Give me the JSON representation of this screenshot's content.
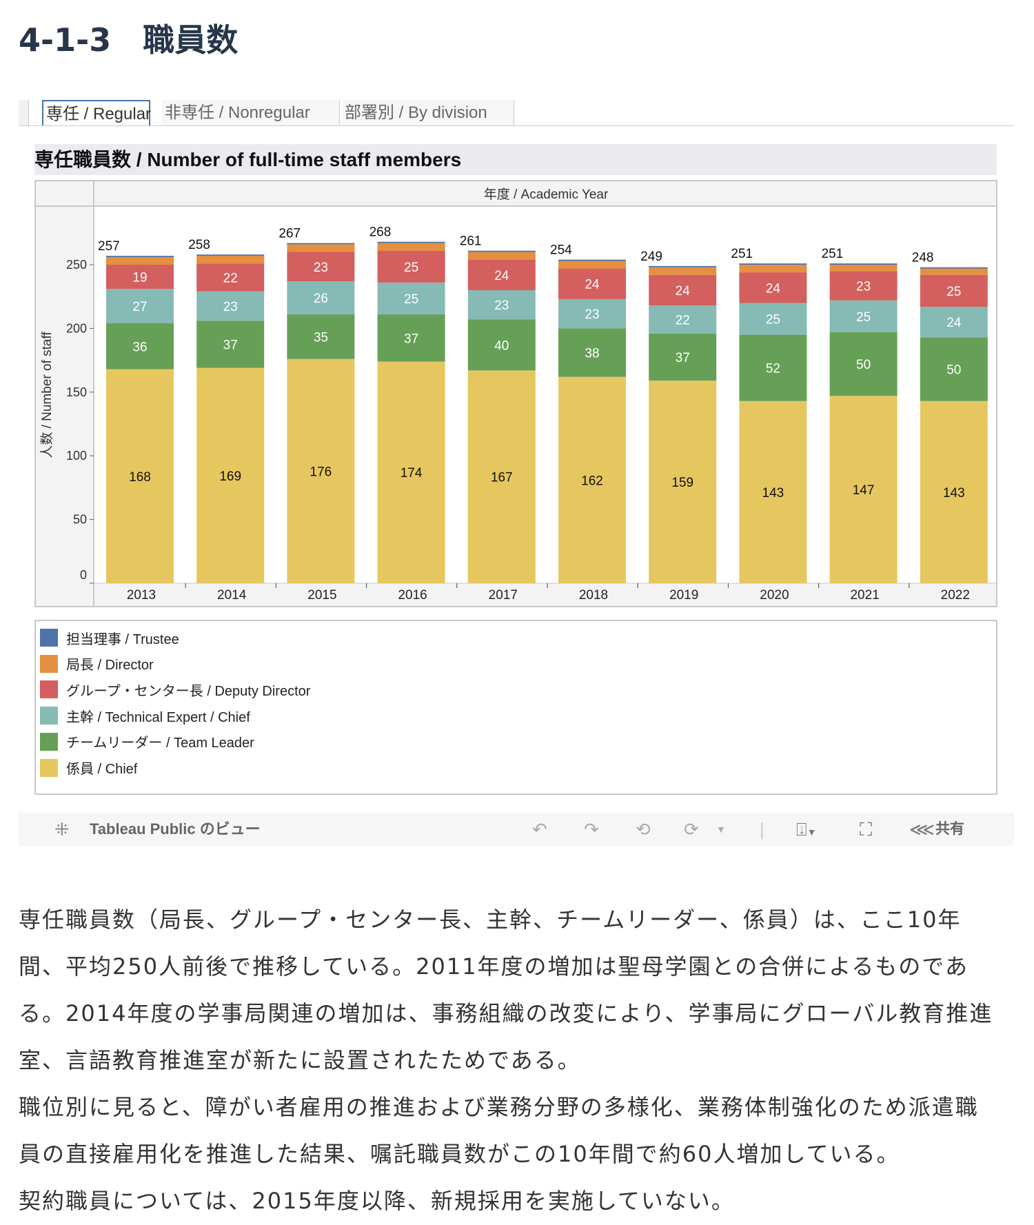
{
  "page": {
    "title": "4-1-3　職員数"
  },
  "tabs": [
    {
      "label": "専任 / Regular",
      "active": true
    },
    {
      "label": "非専任 / Nonregular"
    },
    {
      "label": "部署別 / By division"
    }
  ],
  "chart_data": {
    "type": "bar",
    "stacked": true,
    "title": "専任職員数 / Number of full-time staff members",
    "column_header": "年度 / Academic Year",
    "xlabel": "",
    "ylabel": "人数 / Number of staff",
    "ylim": [
      0,
      270
    ],
    "yticks": [
      0,
      50,
      100,
      150,
      200,
      250
    ],
    "categories": [
      "2013",
      "2014",
      "2015",
      "2016",
      "2017",
      "2018",
      "2019",
      "2020",
      "2021",
      "2022"
    ],
    "totals": [
      257,
      258,
      267,
      268,
      261,
      254,
      249,
      251,
      251,
      248
    ],
    "series": [
      {
        "name": "係員 / Chief",
        "color": "#e6c75f",
        "values": [
          168,
          169,
          176,
          174,
          167,
          162,
          159,
          143,
          147,
          143
        ],
        "labeled": true
      },
      {
        "name": "チームリーダー / Team Leader",
        "color": "#65a056",
        "values": [
          36,
          37,
          35,
          37,
          40,
          38,
          37,
          52,
          50,
          50
        ],
        "labeled": true
      },
      {
        "name": "主幹 / Technical Expert / Chief",
        "color": "#86bab5",
        "values": [
          27,
          23,
          26,
          25,
          23,
          23,
          22,
          25,
          25,
          24
        ],
        "labeled": true
      },
      {
        "name": "グループ・センター長 / Deputy Director",
        "color": "#d35f5f",
        "values": [
          19,
          22,
          23,
          25,
          24,
          24,
          24,
          24,
          23,
          25
        ],
        "labeled": true
      },
      {
        "name": "局長 / Director",
        "color": "#e58f40",
        "values": [
          6,
          6,
          6,
          6,
          6,
          6,
          6,
          6,
          5,
          5
        ],
        "labeled": false
      },
      {
        "name": "担当理事 / Trustee",
        "color": "#4f73a8",
        "values": [
          1,
          1,
          1,
          1,
          1,
          1,
          1,
          1,
          1,
          1
        ],
        "labeled": false
      }
    ],
    "legend_order": [
      5,
      4,
      3,
      2,
      1,
      0
    ],
    "legend_placement": "bottom"
  },
  "toolbar": {
    "brand": "Tableau Public のビュー",
    "share": "共有"
  },
  "text": {
    "lines": [
      "専任職員数（局長、グループ・センター長、主幹、チームリーダー、係員）は、ここ10年",
      "間、平均250人前後で推移している。2011年度の増加は聖母学園との合併によるものであ",
      "る。2014年度の学事局関連の増加は、事務組織の改変により、学事局にグローバル教育推進",
      "室、言語教育推進室が新たに設置されたためである。",
      "職位別に見ると、障がい者雇用の推進および業務分野の多様化、業務体制強化のため派遣職",
      "員の直接雇用化を推進した結果、嘱託職員数がこの10年間で約60人増加している。",
      "契約職員については、2015年度以降、新規採用を実施していない。"
    ]
  }
}
